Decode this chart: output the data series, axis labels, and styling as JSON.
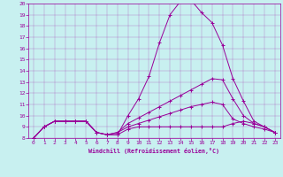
{
  "xlabel": "Windchill (Refroidissement éolien,°C)",
  "bg_color": "#c8f0f0",
  "line_color": "#990099",
  "xlim": [
    -0.5,
    23.5
  ],
  "ylim": [
    8,
    20
  ],
  "yticks": [
    8,
    9,
    10,
    11,
    12,
    13,
    14,
    15,
    16,
    17,
    18,
    19,
    20
  ],
  "xticks": [
    0,
    1,
    2,
    3,
    4,
    5,
    6,
    7,
    8,
    9,
    10,
    11,
    12,
    13,
    14,
    15,
    16,
    17,
    18,
    19,
    20,
    21,
    22,
    23
  ],
  "line1_x": [
    0,
    1,
    2,
    3,
    4,
    5,
    6,
    7,
    8,
    9,
    10,
    11,
    12,
    13,
    14,
    15,
    16,
    17,
    18,
    19,
    20,
    21,
    22,
    23
  ],
  "line1_y": [
    8.0,
    9.0,
    9.5,
    9.5,
    9.5,
    9.5,
    8.5,
    8.3,
    8.3,
    10.0,
    11.5,
    13.5,
    16.5,
    19.0,
    20.2,
    20.3,
    19.2,
    18.3,
    16.3,
    13.3,
    11.3,
    9.5,
    9.0,
    8.5
  ],
  "line2_x": [
    0,
    1,
    2,
    3,
    4,
    5,
    6,
    7,
    8,
    9,
    10,
    11,
    12,
    13,
    14,
    15,
    16,
    17,
    18,
    19,
    20,
    21,
    22,
    23
  ],
  "line2_y": [
    8.0,
    9.0,
    9.5,
    9.5,
    9.5,
    9.5,
    8.5,
    8.3,
    8.5,
    9.3,
    9.8,
    10.3,
    10.8,
    11.3,
    11.8,
    12.3,
    12.8,
    13.3,
    13.2,
    11.5,
    10.0,
    9.3,
    9.0,
    8.5
  ],
  "line3_x": [
    0,
    1,
    2,
    3,
    4,
    5,
    6,
    7,
    8,
    9,
    10,
    11,
    12,
    13,
    14,
    15,
    16,
    17,
    18,
    19,
    20,
    21,
    22,
    23
  ],
  "line3_y": [
    8.0,
    9.0,
    9.5,
    9.5,
    9.5,
    9.5,
    8.5,
    8.3,
    8.5,
    9.0,
    9.3,
    9.6,
    9.9,
    10.2,
    10.5,
    10.8,
    11.0,
    11.2,
    11.0,
    9.7,
    9.3,
    9.0,
    8.8,
    8.5
  ],
  "line4_x": [
    0,
    1,
    2,
    3,
    4,
    5,
    6,
    7,
    8,
    9,
    10,
    11,
    12,
    13,
    14,
    15,
    16,
    17,
    18,
    19,
    20,
    21,
    22,
    23
  ],
  "line4_y": [
    8.0,
    9.0,
    9.5,
    9.5,
    9.5,
    9.5,
    8.5,
    8.3,
    8.3,
    8.8,
    9.0,
    9.0,
    9.0,
    9.0,
    9.0,
    9.0,
    9.0,
    9.0,
    9.0,
    9.3,
    9.5,
    9.3,
    9.0,
    8.5
  ]
}
